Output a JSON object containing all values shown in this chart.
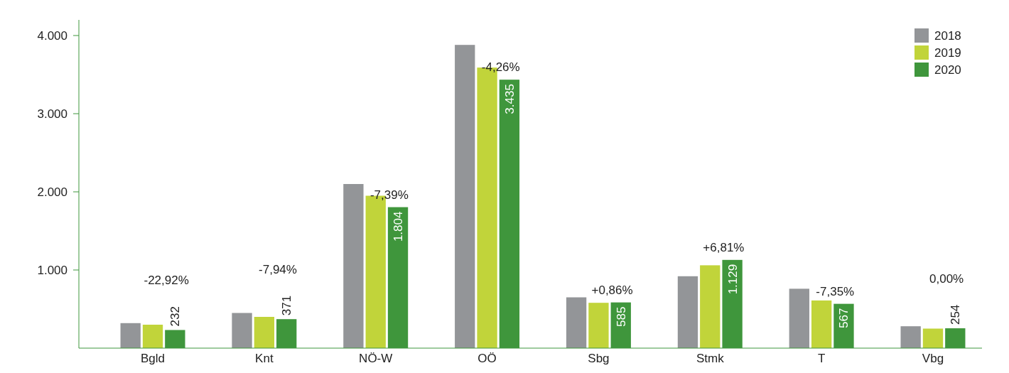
{
  "chart_data": {
    "type": "bar",
    "categories": [
      "Bgld",
      "Knt",
      "NÖ-W",
      "OÖ",
      "Sbg",
      "Stmk",
      "T",
      "Vbg"
    ],
    "series": [
      {
        "name": "2018",
        "color": "#939598",
        "values": [
          320,
          450,
          2100,
          3880,
          650,
          920,
          760,
          280
        ]
      },
      {
        "name": "2019",
        "color": "#c1d43a",
        "values": [
          300,
          400,
          1950,
          3590,
          580,
          1060,
          610,
          250
        ]
      },
      {
        "name": "2020",
        "color": "#3f963c",
        "values": [
          232,
          371,
          1804,
          3435,
          585,
          1129,
          567,
          254
        ],
        "value_labels": [
          "232",
          "371",
          "1.804",
          "3.435",
          "585",
          "1.129",
          "567",
          "254"
        ]
      }
    ],
    "ylim": [
      0,
      4200
    ],
    "yticks": [
      {
        "value": 1000,
        "label": "1.000"
      },
      {
        "value": 2000,
        "label": "2.000"
      },
      {
        "value": 3000,
        "label": "3.000"
      },
      {
        "value": 4000,
        "label": "4.000"
      }
    ],
    "annotations": [
      "-22,92%",
      "-7,94%",
      "-7,39%",
      "-4,26%",
      "+0,86%",
      "+6,81%",
      "-7,35%",
      "0,00%"
    ],
    "grid": false,
    "legend": "top right"
  }
}
